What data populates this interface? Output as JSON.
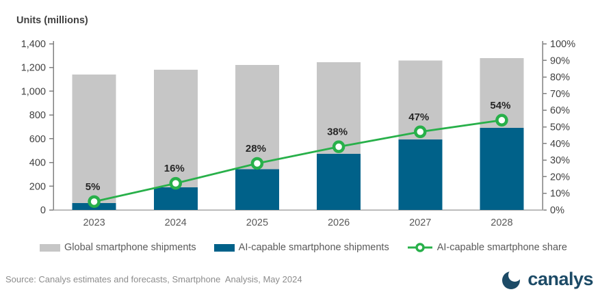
{
  "title": "Units (millions)",
  "colors": {
    "global_bar": "#c6c6c6",
    "ai_bar": "#006189",
    "share_line": "#28b04a",
    "data_label": "#262626",
    "axis_text": "#404040",
    "x_text": "#595959",
    "axis_line": "#808080",
    "baseline": "#a6a6a6",
    "logo_navy": "#1c4a66",
    "source_gray": "#8c8c8c"
  },
  "chart_data": {
    "type": "bar",
    "subtype": "overlapped-bars-with-line",
    "categories": [
      "2023",
      "2024",
      "2025",
      "2026",
      "2027",
      "2028"
    ],
    "series": [
      {
        "name": "Global smartphone shipments",
        "type": "bar",
        "axis": "left",
        "values": [
          1140,
          1180,
          1220,
          1245,
          1260,
          1280
        ]
      },
      {
        "name": "AI-capable smartphone shipments",
        "type": "bar",
        "axis": "left",
        "values": [
          57,
          189,
          342,
          473,
          592,
          690
        ]
      },
      {
        "name": "AI-capable smartphone share",
        "type": "line",
        "axis": "right",
        "values": [
          5,
          16,
          28,
          38,
          47,
          54
        ],
        "point_labels": [
          "5%",
          "16%",
          "28%",
          "38%",
          "47%",
          "54%"
        ]
      }
    ],
    "title": "",
    "xlabel": "",
    "ylabel_left": "Units (millions)",
    "ylabel_right": "",
    "y_left": {
      "min": 0,
      "max": 1400,
      "labels": [
        "0",
        "200",
        "400",
        "600",
        "800",
        "1,000",
        "1,200",
        "1,400"
      ]
    },
    "y_right": {
      "min": 0,
      "max": 100,
      "labels": [
        "0%",
        "10%",
        "20%",
        "30%",
        "40%",
        "50%",
        "60%",
        "70%",
        "80%",
        "90%",
        "100%"
      ]
    },
    "grid": false,
    "legend_position": "bottom"
  },
  "legend": {
    "items": [
      {
        "label": "Global smartphone shipments",
        "swatch": "gray-bar-swatch"
      },
      {
        "label": "AI-capable smartphone shipments",
        "swatch": "blue-bar-swatch"
      },
      {
        "label": "AI-capable smartphone share",
        "swatch": "green-line-dot-marker"
      }
    ]
  },
  "footer": {
    "source": "Source: Canalys estimates and forecasts, Smartphone  Analysis, May 2024",
    "logo_text": "canalys"
  }
}
